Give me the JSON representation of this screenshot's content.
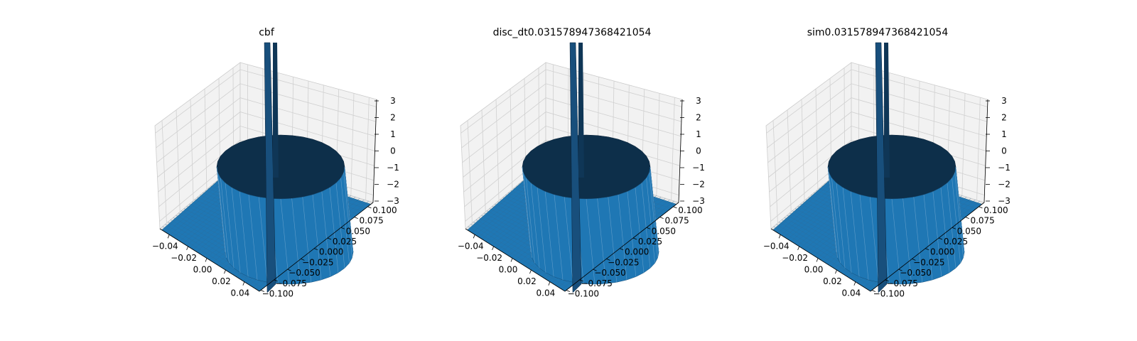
{
  "figure": {
    "background": "#ffffff"
  },
  "style": {
    "surface_color": "#1f77b4",
    "surface_dark": "#0d2f4a",
    "pane_color": "#f2f2f2",
    "pane_floor": "#e6e6e6",
    "grid_color": "#d0d0d0",
    "text_color": "#000000"
  },
  "chart_data": [
    {
      "type": "surface",
      "title": "cbf",
      "xlabel": "",
      "ylabel": "",
      "zlabel": "",
      "x_ticks": [
        "−0.04",
        "−0.02",
        "0.00",
        "0.02",
        "0.04"
      ],
      "y_ticks": [
        "−0.100",
        "−0.075",
        "−0.050",
        "−0.025",
        "0.000",
        "0.025",
        "0.050",
        "0.075",
        "0.100"
      ],
      "z_ticks": [
        "−3",
        "−2",
        "−1",
        "0",
        "1",
        "2",
        "3"
      ],
      "xlim": [
        -0.05,
        0.05
      ],
      "ylim": [
        -0.1,
        0.1
      ],
      "zlim": [
        -3,
        3
      ],
      "grid": true
    },
    {
      "type": "surface",
      "title": "disc_dt0.031578947368421054",
      "xlabel": "",
      "ylabel": "",
      "zlabel": "",
      "x_ticks": [
        "−0.04",
        "−0.02",
        "0.00",
        "0.02",
        "0.04"
      ],
      "y_ticks": [
        "−0.100",
        "−0.075",
        "−0.050",
        "−0.025",
        "0.000",
        "0.025",
        "0.050",
        "0.075",
        "0.100"
      ],
      "z_ticks": [
        "−3",
        "−2",
        "−1",
        "0",
        "1",
        "2",
        "3"
      ],
      "xlim": [
        -0.05,
        0.05
      ],
      "ylim": [
        -0.1,
        0.1
      ],
      "zlim": [
        -3,
        3
      ],
      "grid": true
    },
    {
      "type": "surface",
      "title": "sim0.031578947368421054",
      "xlabel": "",
      "ylabel": "",
      "zlabel": "",
      "x_ticks": [
        "−0.04",
        "−0.02",
        "0.00",
        "0.02",
        "0.04"
      ],
      "y_ticks": [
        "−0.100",
        "−0.075",
        "−0.050",
        "−0.025",
        "0.000",
        "0.025",
        "0.050",
        "0.075",
        "0.100"
      ],
      "z_ticks": [
        "−3",
        "−2",
        "−1",
        "0",
        "1",
        "2",
        "3"
      ],
      "xlim": [
        -0.05,
        0.05
      ],
      "ylim": [
        -0.1,
        0.1
      ],
      "zlim": [
        -3,
        3
      ],
      "grid": true
    }
  ]
}
